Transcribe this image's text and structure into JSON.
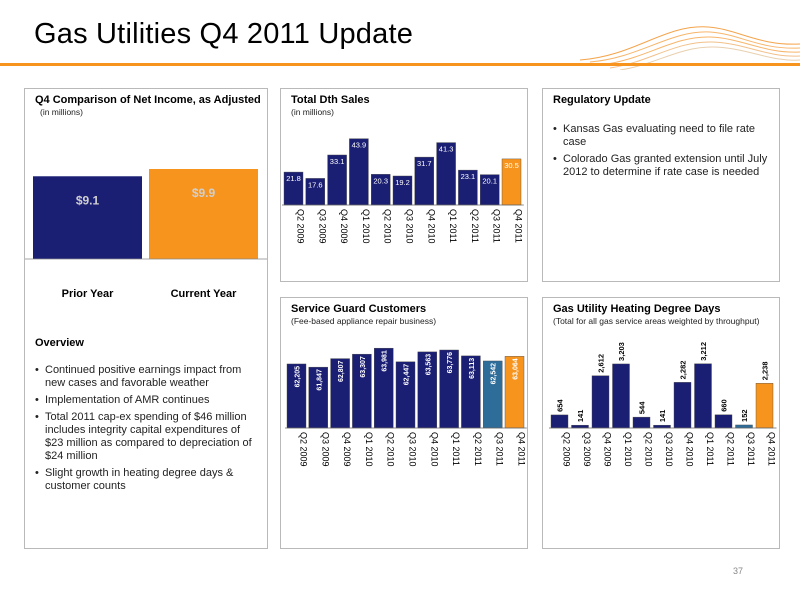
{
  "page": {
    "title": "Gas Utilities Q4 2011 Update",
    "page_number": "37"
  },
  "colors": {
    "orange": "#f7941d",
    "navy": "#1b1f74",
    "steel": "#2e6d9a"
  },
  "panels": {
    "net_income": {
      "title": "Q4 Comparison of Net Income, as Adjusted",
      "subtitle": "(in millions)"
    },
    "dth": {
      "title": "Total Dth Sales",
      "subtitle": "(in millions)"
    },
    "regulatory": {
      "title": "Regulatory Update",
      "bullets": [
        "Kansas Gas evaluating need to file rate case",
        "Colorado Gas granted extension until July 2012 to determine if rate case is needed"
      ]
    },
    "service_guard": {
      "title": "Service Guard Customers",
      "subtitle": "(Fee-based appliance repair business)"
    },
    "hdd": {
      "title": "Gas Utility Heating Degree Days",
      "subtitle": "(Total for all gas service areas weighted by throughput)"
    },
    "overview": {
      "title": "Overview",
      "bullets": [
        "Continued positive earnings impact from new cases and favorable weather",
        "Implementation of AMR continues",
        "Total 2011 cap-ex spending of $46 million includes integrity capital expenditures of $23 million as compared to depreciation of $24 million",
        "Slight growth in heating degree days & customer counts"
      ]
    }
  },
  "chart_data": [
    {
      "id": "net_income",
      "type": "bar",
      "categories": [
        "Prior Year",
        "Current Year"
      ],
      "values": [
        9.1,
        9.9
      ],
      "labels": [
        "$9.1",
        "$9.9"
      ],
      "ylim": [
        0,
        9.9
      ]
    },
    {
      "id": "dth",
      "type": "bar",
      "categories": [
        "Q2 2009",
        "Q3 2009",
        "Q4 2009",
        "Q1 2010",
        "Q2 2010",
        "Q3 2010",
        "Q4 2010",
        "Q1 2011",
        "Q2 2011",
        "Q3 2011",
        "Q4 2011"
      ],
      "values": [
        21.8,
        17.6,
        33.1,
        43.9,
        20.3,
        19.2,
        31.7,
        41.3,
        23.1,
        20.1,
        30.5
      ],
      "labels": [
        "21.8",
        "17.6",
        "33.1",
        "43.9",
        "20.3",
        "19.2",
        "31.7",
        "41.3",
        "23.1",
        "20.1",
        "30.5"
      ],
      "ylim": [
        0,
        45
      ]
    },
    {
      "id": "service_guard",
      "type": "bar",
      "categories": [
        "Q2 2009",
        "Q3 2009",
        "Q4 2009",
        "Q1 2010",
        "Q2 2010",
        "Q3 2010",
        "Q4 2010",
        "Q1 2011",
        "Q2 2011",
        "Q3 2011",
        "Q4 2011"
      ],
      "values": [
        62205,
        61847,
        62807,
        63307,
        63981,
        62447,
        63563,
        63776,
        63113,
        62542,
        63064
      ],
      "labels": [
        "62,205",
        "61,847",
        "62,807",
        "63,307",
        "63,981",
        "62,447",
        "63,563",
        "63,776",
        "63,113",
        "62,542",
        "63,064"
      ],
      "ylim": [
        55000,
        64000
      ]
    },
    {
      "id": "hdd",
      "type": "bar",
      "categories": [
        "Q2 2009",
        "Q3 2009",
        "Q4 2009",
        "Q1 2010",
        "Q2 2010",
        "Q3 2010",
        "Q4 2010",
        "Q1 2011",
        "Q2 2011",
        "Q3 2011",
        "Q4 2011"
      ],
      "values": [
        654,
        141,
        2612,
        3203,
        544,
        141,
        2282,
        3212,
        660,
        152,
        2238
      ],
      "labels": [
        "654",
        "141",
        "2,612",
        "3,203",
        "544",
        "141",
        "2,282",
        "3,212",
        "660",
        "152",
        "2,238"
      ],
      "ylim": [
        0,
        3300
      ]
    }
  ]
}
